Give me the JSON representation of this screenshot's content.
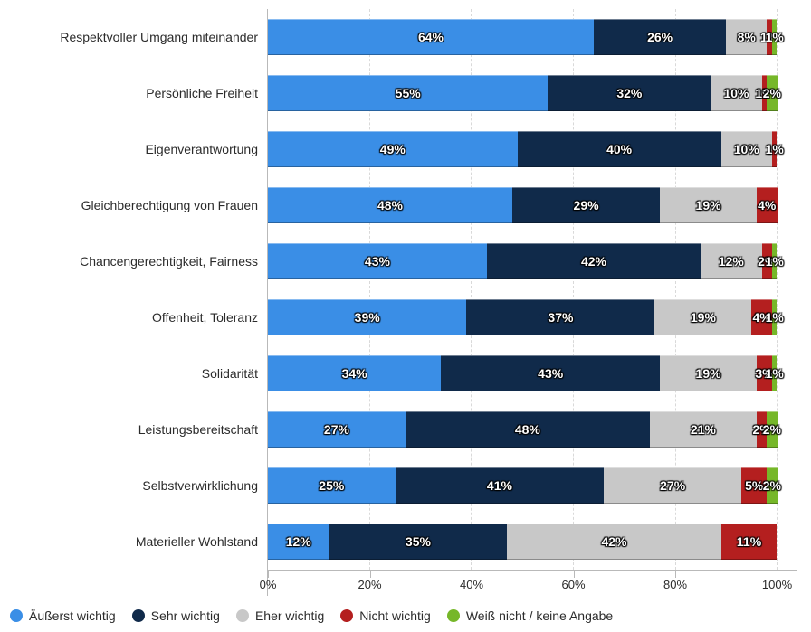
{
  "chart": {
    "type": "stacked-bar-horizontal",
    "xmax": 104,
    "xtick_step": 20,
    "bar_colors": [
      "#3a8ee6",
      "#102a4a",
      "#c8c8c8",
      "#b41f1f",
      "#76b729"
    ],
    "grid_color": "#d9d9d9",
    "axis_color": "#b9b9b9",
    "label_fontsize": 14,
    "bar_label_fontsize": 14,
    "categories": [
      {
        "label": "Respektvoller Umgang miteinander",
        "values": [
          64,
          26,
          8,
          1,
          1
        ],
        "display": [
          "64%",
          "26%",
          "8%",
          "1%",
          "1%"
        ]
      },
      {
        "label": "Persönliche Freiheit",
        "values": [
          55,
          32,
          10,
          1,
          2
        ],
        "display": [
          "55%",
          "32%",
          "10%",
          "1%",
          "2%"
        ]
      },
      {
        "label": "Eigenverantwortung",
        "values": [
          49,
          40,
          10,
          1,
          0
        ],
        "display": [
          "49%",
          "40%",
          "10%",
          "1%",
          ""
        ]
      },
      {
        "label": "Gleichberechtigung von Frauen",
        "values": [
          48,
          29,
          19,
          4,
          0
        ],
        "display": [
          "48%",
          "29%",
          "19%",
          "4%",
          ""
        ]
      },
      {
        "label": "Chancengerechtigkeit, Fairness",
        "values": [
          43,
          42,
          12,
          2,
          1
        ],
        "display": [
          "43%",
          "42%",
          "12%",
          "2%",
          "1%"
        ]
      },
      {
        "label": "Offenheit, Toleranz",
        "values": [
          39,
          37,
          19,
          4,
          1
        ],
        "display": [
          "39%",
          "37%",
          "19%",
          "4%",
          "1%"
        ]
      },
      {
        "label": "Solidarität",
        "values": [
          34,
          43,
          19,
          3,
          1
        ],
        "display": [
          "34%",
          "43%",
          "19%",
          "3%",
          "1%"
        ]
      },
      {
        "label": "Leistungsbereitschaft",
        "values": [
          27,
          48,
          21,
          2,
          2
        ],
        "display": [
          "27%",
          "48%",
          "21%",
          "2%",
          "2%"
        ]
      },
      {
        "label": "Selbstverwirklichung",
        "values": [
          25,
          41,
          27,
          5,
          2
        ],
        "display": [
          "25%",
          "41%",
          "27%",
          "5%",
          "2%"
        ]
      },
      {
        "label": "Materieller Wohlstand",
        "values": [
          12,
          35,
          42,
          11,
          0
        ],
        "display": [
          "12%",
          "35%",
          "42%",
          "11%",
          ""
        ]
      }
    ],
    "xticks": [
      {
        "pos": 0,
        "label": "0%"
      },
      {
        "pos": 20,
        "label": "20%"
      },
      {
        "pos": 40,
        "label": "40%"
      },
      {
        "pos": 60,
        "label": "60%"
      },
      {
        "pos": 80,
        "label": "80%"
      },
      {
        "pos": 100,
        "label": "100%"
      }
    ],
    "legend": [
      "Äußerst wichtig",
      "Sehr wichtig",
      "Eher wichtig",
      "Nicht wichtig",
      "Weiß nicht / keine Angabe"
    ]
  }
}
